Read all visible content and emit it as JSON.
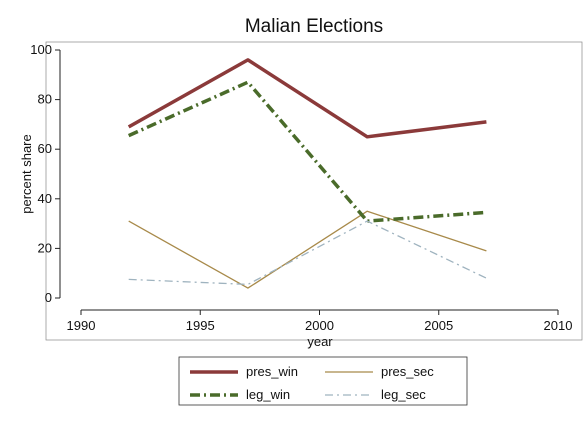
{
  "chart_data": {
    "type": "line",
    "title": "Malian Elections",
    "xlabel": "year",
    "ylabel": "percent share",
    "xlim": [
      1990,
      2010
    ],
    "ylim": [
      0,
      100
    ],
    "x_ticks": [
      1990,
      1995,
      2000,
      2005,
      2010
    ],
    "y_ticks": [
      0,
      20,
      40,
      60,
      80,
      100
    ],
    "grid": false,
    "legend_position": "bottom",
    "series": [
      {
        "name": "pres_win",
        "color": "#8b3a3a",
        "style": "solid",
        "width": "thick",
        "points": [
          [
            1992,
            69
          ],
          [
            1997,
            96
          ],
          [
            2002,
            65
          ],
          [
            2007,
            71
          ]
        ]
      },
      {
        "name": "pres_sec",
        "color": "#a88a4a",
        "style": "solid",
        "width": "thin",
        "points": [
          [
            1992,
            31
          ],
          [
            1997,
            4
          ],
          [
            2002,
            35
          ],
          [
            2007,
            19
          ]
        ]
      },
      {
        "name": "leg_win",
        "color": "#4a6b2a",
        "style": "dash-dot",
        "width": "thick",
        "points": [
          [
            1992,
            65.5
          ],
          [
            1997,
            87
          ],
          [
            2002,
            31
          ],
          [
            2007,
            34.5
          ]
        ]
      },
      {
        "name": "leg_sec",
        "color": "#9fb3bf",
        "style": "dash-dot",
        "width": "thin",
        "points": [
          [
            1992,
            7.5
          ],
          [
            1997,
            5.5
          ],
          [
            2002,
            31
          ],
          [
            2007,
            8
          ]
        ]
      }
    ]
  }
}
